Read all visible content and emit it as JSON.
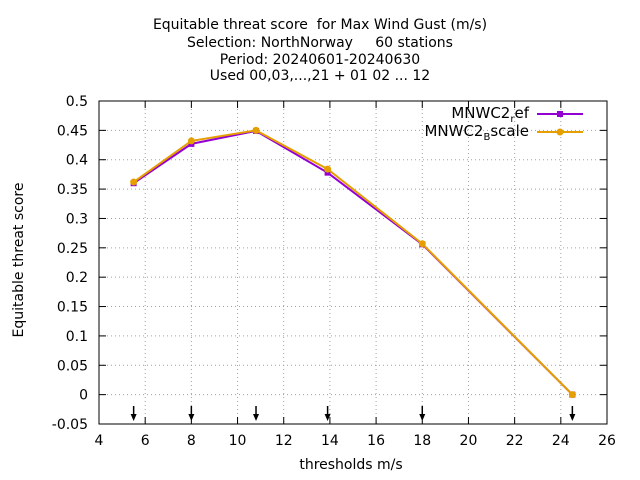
{
  "chart_data": {
    "type": "line",
    "title_lines": [
      "Equitable threat score  for Max Wind Gust (m/s)",
      "Selection: NorthNorway     60 stations",
      "Period: 20240601-20240630",
      "Used 00,03,...,21 + 01 02 ... 12"
    ],
    "xlabel": "thresholds m/s",
    "ylabel": "Equitable threat score",
    "xlim": [
      4,
      26
    ],
    "ylim": [
      -0.05,
      0.5
    ],
    "x_ticks": [
      "4",
      "6",
      "8",
      "10",
      "12",
      "14",
      "16",
      "18",
      "20",
      "22",
      "24",
      "26"
    ],
    "y_ticks": [
      "-0.05",
      "0",
      "0.05",
      "0.1",
      "0.15",
      "0.2",
      "0.25",
      "0.3",
      "0.35",
      "0.4",
      "0.45",
      "0.5"
    ],
    "grid": true,
    "legend_position": "top-right",
    "series": [
      {
        "name": "MNWC2_ref",
        "legend_main": "MNWC2",
        "legend_sub": "r",
        "legend_tail": "ef",
        "color": "#9400d3",
        "x": [
          5.5,
          8.0,
          10.8,
          13.9,
          18.0,
          24.5
        ],
        "y": [
          0.36,
          0.427,
          0.449,
          0.378,
          0.256,
          0.0
        ]
      },
      {
        "name": "MNWC2_Bscale",
        "legend_main": "MNWC2",
        "legend_sub": "B",
        "legend_tail": "scale",
        "color": "#e69f00",
        "x": [
          5.5,
          8.0,
          10.8,
          13.9,
          18.0,
          24.5
        ],
        "y": [
          0.362,
          0.432,
          0.45,
          0.384,
          0.257,
          0.0
        ]
      }
    ],
    "arrow_markers_x": [
      5.5,
      8.0,
      10.8,
      13.9,
      18.0,
      24.5
    ]
  }
}
